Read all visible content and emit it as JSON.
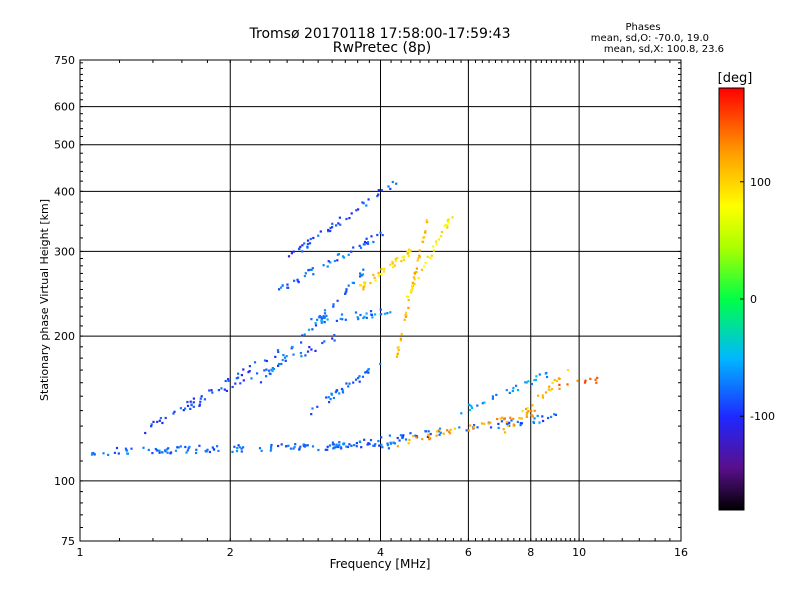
{
  "title": {
    "line1": "Tromsø 20170118 17:58:00-17:59:43",
    "line2": "RwPretec (8p)"
  },
  "phases_box": {
    "heading": "Phases",
    "o_line": "mean, sd,O: -70.0, 19.0",
    "x_line": "mean, sd,X: 100.8, 23.6"
  },
  "colors": {
    "background": "#ffffff",
    "grid": "#000000",
    "main_trace": "#1f8fe0"
  },
  "chart_data": {
    "type": "scatter",
    "title": "Tromsø 20170118 17:58:00-17:59:43",
    "subtitle": "RwPretec (8p)",
    "xlabel": "Frequency [MHz]",
    "ylabel": "Stationary phase Virtual Height [km]",
    "xscale": "log",
    "yscale": "log",
    "xlim": [
      1,
      16
    ],
    "ylim": [
      75,
      750
    ],
    "xticks": [
      1,
      2,
      4,
      6,
      8,
      10,
      16
    ],
    "yticks": [
      75,
      100,
      200,
      300,
      400,
      500,
      600,
      750
    ],
    "grid": true,
    "colorbar": {
      "label": "[deg]",
      "range": [
        -180,
        180
      ],
      "ticks": [
        100,
        0,
        -100
      ],
      "colormap": "rainbow"
    },
    "traces": [
      {
        "f_start": 1.05,
        "f_end": 4.3,
        "h_start": 115,
        "h_end": 119,
        "phase": -78,
        "count": 130
      },
      {
        "f_start": 3.2,
        "f_end": 9.0,
        "h_start": 118,
        "h_end": 136,
        "phase": -80,
        "count": 70
      },
      {
        "f_start": 4.3,
        "f_end": 8.5,
        "h_start": 120,
        "h_end": 140,
        "phase": 120,
        "count": 45
      },
      {
        "f_start": 1.35,
        "f_end": 2.6,
        "h_start": 128,
        "h_end": 190,
        "phase": -90,
        "count": 40
      },
      {
        "f_start": 1.6,
        "f_end": 3.3,
        "h_start": 140,
        "h_end": 200,
        "phase": -85,
        "count": 40
      },
      {
        "f_start": 2.3,
        "f_end": 3.8,
        "h_start": 160,
        "h_end": 280,
        "phase": -75,
        "count": 45
      },
      {
        "f_start": 2.5,
        "f_end": 4.1,
        "h_start": 250,
        "h_end": 330,
        "phase": -80,
        "count": 45
      },
      {
        "f_start": 2.6,
        "f_end": 4.3,
        "h_start": 290,
        "h_end": 420,
        "phase": -90,
        "count": 45
      },
      {
        "f_start": 2.9,
        "f_end": 4.0,
        "h_start": 140,
        "h_end": 175,
        "phase": -80,
        "count": 35
      },
      {
        "f_start": 2.9,
        "f_end": 4.2,
        "h_start": 215,
        "h_end": 225,
        "phase": -70,
        "count": 35
      },
      {
        "f_start": 3.6,
        "f_end": 4.6,
        "h_start": 250,
        "h_end": 300,
        "phase": 100,
        "count": 40
      },
      {
        "f_start": 4.3,
        "f_end": 5.0,
        "h_start": 180,
        "h_end": 360,
        "phase": 110,
        "count": 45
      },
      {
        "f_start": 4.5,
        "f_end": 5.6,
        "h_start": 240,
        "h_end": 360,
        "phase": 90,
        "count": 30
      },
      {
        "f_start": 5.8,
        "f_end": 9.0,
        "h_start": 140,
        "h_end": 170,
        "phase": -60,
        "count": 30
      },
      {
        "f_start": 7.0,
        "f_end": 9.5,
        "h_start": 125,
        "h_end": 170,
        "phase": 110,
        "count": 25
      },
      {
        "f_start": 9.0,
        "f_end": 11.5,
        "h_start": 158,
        "h_end": 162,
        "phase": 140,
        "count": 10
      }
    ]
  }
}
